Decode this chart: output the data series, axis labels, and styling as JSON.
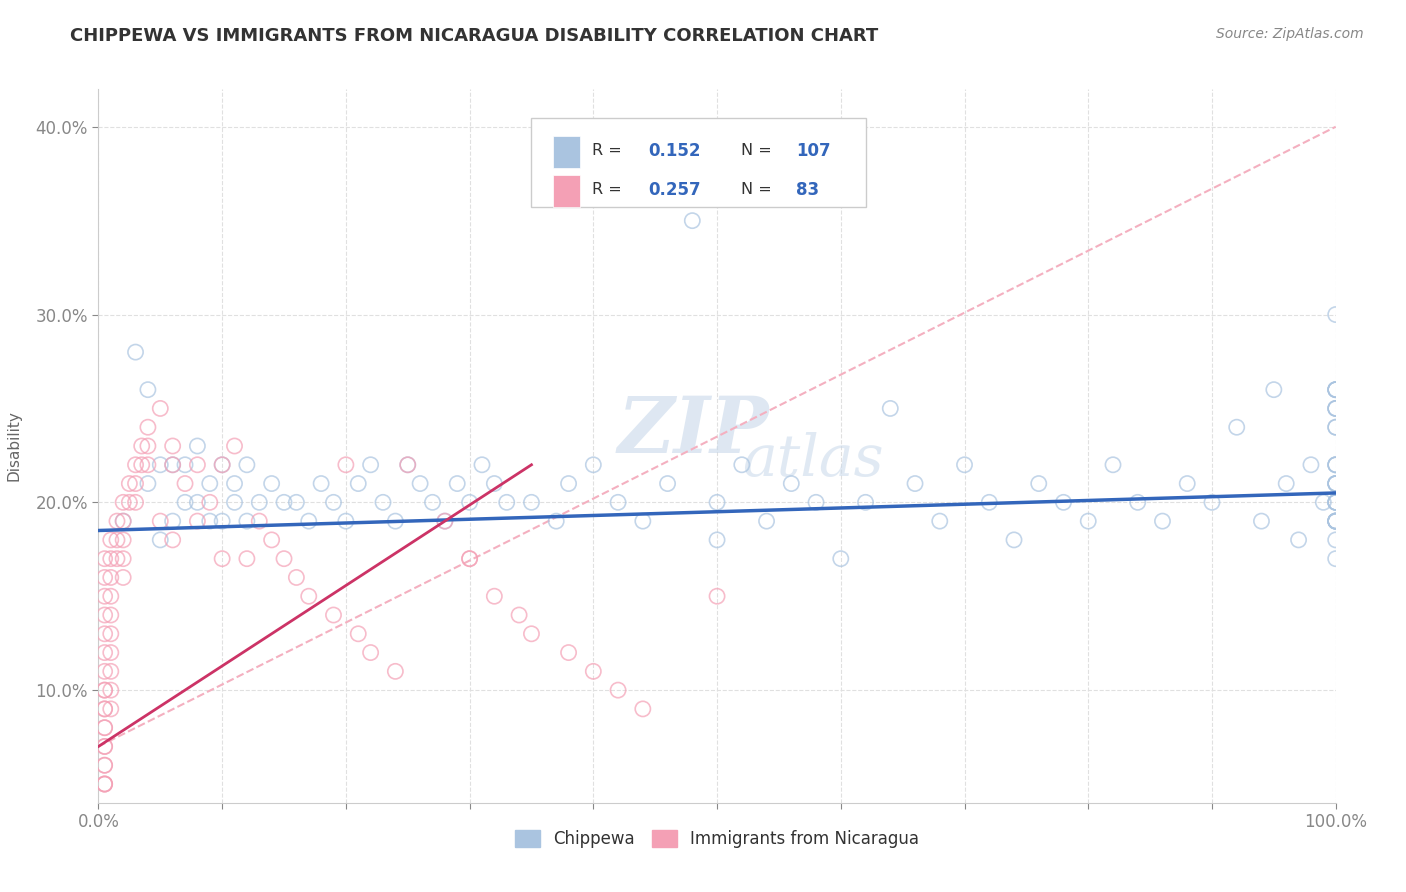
{
  "title": "CHIPPEWA VS IMMIGRANTS FROM NICARAGUA DISABILITY CORRELATION CHART",
  "source": "Source: ZipAtlas.com",
  "ylabel": "Disability",
  "xlabel": "",
  "xlim": [
    0.0,
    1.0
  ],
  "ylim": [
    0.04,
    0.42
  ],
  "yticks": [
    0.1,
    0.2,
    0.3,
    0.4
  ],
  "ytick_labels": [
    "10.0%",
    "20.0%",
    "30.0%",
    "40.0%"
  ],
  "xticks": [
    0.0,
    0.1,
    0.2,
    0.3,
    0.4,
    0.5,
    0.6,
    0.7,
    0.8,
    0.9,
    1.0
  ],
  "xtick_labels": [
    "0.0%",
    "",
    "",
    "",
    "",
    "",
    "",
    "",
    "",
    "",
    "100.0%"
  ],
  "watermark_line1": "ZIP",
  "watermark_line2": "atlas",
  "background_color": "#ffffff",
  "grid_color": "#e0e0e0",
  "chippewa_color": "#aac4e0",
  "nicaragua_color": "#f4a0b5",
  "chippewa_line_color": "#3366bb",
  "nicaragua_line_color": "#cc3366",
  "dashed_line_color": "#f4b0c0",
  "legend_R1": "0.152",
  "legend_N1": "107",
  "legend_R2": "0.257",
  "legend_N2": "83",
  "legend_color": "#3366bb",
  "legend_label1": "Chippewa",
  "legend_label2": "Immigrants from Nicaragua",
  "chippewa_x": [
    0.02,
    0.03,
    0.04,
    0.04,
    0.05,
    0.05,
    0.06,
    0.06,
    0.07,
    0.07,
    0.08,
    0.08,
    0.09,
    0.09,
    0.1,
    0.1,
    0.11,
    0.11,
    0.12,
    0.12,
    0.13,
    0.14,
    0.15,
    0.16,
    0.17,
    0.18,
    0.19,
    0.2,
    0.21,
    0.22,
    0.23,
    0.24,
    0.25,
    0.26,
    0.27,
    0.28,
    0.29,
    0.3,
    0.31,
    0.32,
    0.33,
    0.35,
    0.37,
    0.38,
    0.4,
    0.42,
    0.44,
    0.46,
    0.48,
    0.5,
    0.5,
    0.52,
    0.54,
    0.56,
    0.58,
    0.6,
    0.62,
    0.64,
    0.66,
    0.68,
    0.7,
    0.72,
    0.74,
    0.76,
    0.78,
    0.8,
    0.82,
    0.84,
    0.86,
    0.88,
    0.9,
    0.92,
    0.94,
    0.95,
    0.96,
    0.97,
    0.98,
    0.99,
    1.0,
    1.0,
    1.0,
    1.0,
    1.0,
    1.0,
    1.0,
    1.0,
    1.0,
    1.0,
    1.0,
    1.0,
    1.0,
    1.0,
    1.0,
    1.0,
    1.0,
    1.0,
    1.0,
    1.0,
    1.0,
    1.0,
    1.0,
    1.0,
    1.0,
    1.0,
    1.0,
    1.0,
    1.0
  ],
  "chippewa_y": [
    0.19,
    0.28,
    0.26,
    0.21,
    0.22,
    0.18,
    0.22,
    0.19,
    0.2,
    0.22,
    0.2,
    0.23,
    0.21,
    0.19,
    0.22,
    0.19,
    0.21,
    0.2,
    0.19,
    0.22,
    0.2,
    0.21,
    0.2,
    0.2,
    0.19,
    0.21,
    0.2,
    0.19,
    0.21,
    0.22,
    0.2,
    0.19,
    0.22,
    0.21,
    0.2,
    0.19,
    0.21,
    0.2,
    0.22,
    0.21,
    0.2,
    0.2,
    0.19,
    0.21,
    0.22,
    0.2,
    0.19,
    0.21,
    0.35,
    0.18,
    0.2,
    0.22,
    0.19,
    0.21,
    0.2,
    0.17,
    0.2,
    0.25,
    0.21,
    0.19,
    0.22,
    0.2,
    0.18,
    0.21,
    0.2,
    0.19,
    0.22,
    0.2,
    0.19,
    0.21,
    0.2,
    0.24,
    0.19,
    0.26,
    0.21,
    0.18,
    0.22,
    0.2,
    0.18,
    0.21,
    0.17,
    0.19,
    0.26,
    0.21,
    0.25,
    0.2,
    0.19,
    0.24,
    0.22,
    0.3,
    0.19,
    0.26,
    0.22,
    0.2,
    0.26,
    0.21,
    0.25,
    0.2,
    0.19,
    0.26,
    0.21,
    0.19,
    0.25,
    0.22,
    0.24,
    0.2,
    0.19
  ],
  "nicaragua_x": [
    0.005,
    0.005,
    0.005,
    0.005,
    0.005,
    0.005,
    0.005,
    0.005,
    0.005,
    0.005,
    0.005,
    0.005,
    0.005,
    0.005,
    0.005,
    0.005,
    0.005,
    0.005,
    0.005,
    0.005,
    0.01,
    0.01,
    0.01,
    0.01,
    0.01,
    0.01,
    0.01,
    0.01,
    0.01,
    0.01,
    0.015,
    0.015,
    0.015,
    0.02,
    0.02,
    0.02,
    0.02,
    0.02,
    0.025,
    0.025,
    0.03,
    0.03,
    0.03,
    0.035,
    0.035,
    0.04,
    0.04,
    0.04,
    0.05,
    0.05,
    0.06,
    0.06,
    0.06,
    0.07,
    0.08,
    0.08,
    0.09,
    0.1,
    0.1,
    0.11,
    0.12,
    0.13,
    0.14,
    0.15,
    0.16,
    0.17,
    0.19,
    0.2,
    0.21,
    0.22,
    0.24,
    0.25,
    0.28,
    0.3,
    0.3,
    0.32,
    0.34,
    0.35,
    0.38,
    0.4,
    0.42,
    0.44,
    0.5
  ],
  "nicaragua_y": [
    0.17,
    0.16,
    0.15,
    0.14,
    0.13,
    0.12,
    0.11,
    0.1,
    0.09,
    0.08,
    0.07,
    0.06,
    0.05,
    0.05,
    0.05,
    0.06,
    0.07,
    0.08,
    0.09,
    0.1,
    0.18,
    0.17,
    0.16,
    0.15,
    0.14,
    0.13,
    0.12,
    0.11,
    0.1,
    0.09,
    0.19,
    0.18,
    0.17,
    0.2,
    0.19,
    0.18,
    0.17,
    0.16,
    0.21,
    0.2,
    0.22,
    0.21,
    0.2,
    0.23,
    0.22,
    0.24,
    0.23,
    0.22,
    0.25,
    0.19,
    0.23,
    0.22,
    0.18,
    0.21,
    0.22,
    0.19,
    0.2,
    0.22,
    0.17,
    0.23,
    0.17,
    0.19,
    0.18,
    0.17,
    0.16,
    0.15,
    0.14,
    0.22,
    0.13,
    0.12,
    0.11,
    0.22,
    0.19,
    0.17,
    0.17,
    0.15,
    0.14,
    0.13,
    0.12,
    0.11,
    0.1,
    0.09,
    0.15
  ]
}
